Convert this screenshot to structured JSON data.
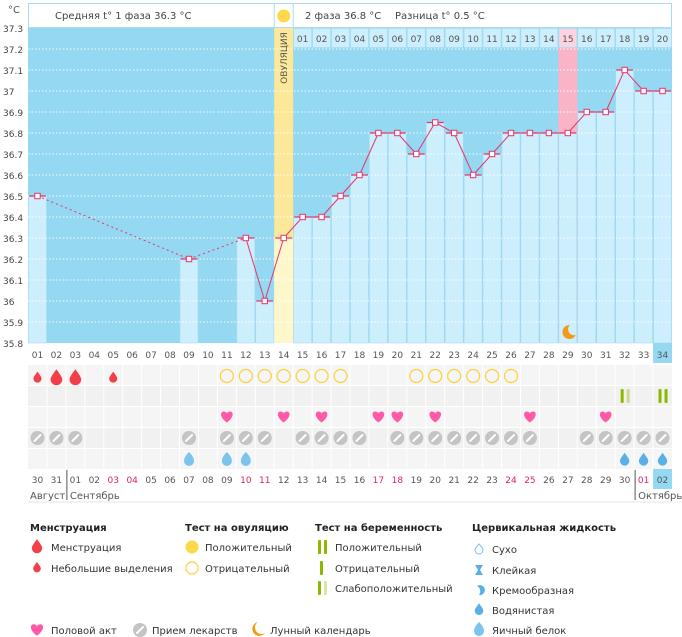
{
  "header": {
    "unit": "°C",
    "phase1": "Средняя t° 1 фаза 36.3 °C",
    "phase2": "2 фаза 36.8 °C",
    "difference": "Разница t° 0.5 °C",
    "ovulation_label": "ОВУЛЯЦИЯ"
  },
  "chart_data": {
    "type": "line",
    "y_unit": "°C",
    "ylim": [
      35.8,
      37.3
    ],
    "y_ticks": [
      "37.3",
      "37.2",
      "37.1",
      "37",
      "36.9",
      "36.8",
      "36.7",
      "36.6",
      "36.5",
      "36.4",
      "36.3",
      "36.2",
      "36.1",
      "36",
      "35.9",
      "35.8"
    ],
    "grid": true,
    "cycle_days": [
      "01",
      "02",
      "03",
      "04",
      "05",
      "06",
      "07",
      "08",
      "09",
      "10",
      "11",
      "12",
      "13",
      "14",
      "15",
      "16",
      "17",
      "18",
      "19",
      "20",
      "21",
      "22",
      "23",
      "24",
      "25",
      "26",
      "27",
      "28",
      "29",
      "30",
      "31",
      "32",
      "33",
      "34"
    ],
    "temperatures": [
      36.5,
      null,
      null,
      null,
      null,
      null,
      null,
      null,
      36.2,
      null,
      null,
      36.3,
      36.0,
      36.3,
      36.4,
      36.4,
      36.5,
      36.6,
      36.8,
      36.8,
      36.7,
      36.85,
      36.8,
      36.6,
      36.7,
      36.8,
      36.8,
      36.8,
      36.8,
      36.9,
      36.9,
      37.1,
      37.0,
      37.0
    ],
    "ovulation_day": 14,
    "highlight_day": 29,
    "current_day": 34,
    "second_phase_start_day": 15,
    "second_phase_days": [
      "01",
      "02",
      "03",
      "04",
      "05",
      "06",
      "07",
      "08",
      "09",
      "10",
      "11",
      "12",
      "13",
      "14",
      "15",
      "16",
      "17",
      "18",
      "19",
      "20"
    ],
    "dates": [
      "30",
      "31",
      "01",
      "02",
      "03",
      "04",
      "05",
      "06",
      "07",
      "08",
      "09",
      "10",
      "11",
      "12",
      "13",
      "14",
      "15",
      "16",
      "17",
      "18",
      "19",
      "20",
      "21",
      "22",
      "23",
      "24",
      "25",
      "26",
      "27",
      "28",
      "29",
      "30",
      "01",
      "02"
    ],
    "weekend_dates_cycle_days": [
      5,
      6,
      12,
      13,
      19,
      20,
      26,
      27,
      33
    ],
    "months": [
      {
        "label": "Август",
        "start_day": 1
      },
      {
        "label": "Сентябрь",
        "start_day": 3
      },
      {
        "label": "Октябрь",
        "start_day": 33
      }
    ],
    "menstruation": {
      "heavy": [
        2,
        3
      ],
      "light": [
        1,
        5
      ]
    },
    "ovulation_test": {
      "negative": [
        11,
        12,
        13,
        14,
        15,
        16,
        17,
        21,
        22,
        23,
        24,
        25,
        26
      ],
      "positive": []
    },
    "pregnancy_test": {
      "positive": [
        34
      ],
      "weak_positive": [
        32
      ]
    },
    "intercourse": [
      11,
      14,
      16,
      19,
      20,
      22,
      27,
      31
    ],
    "medication": [
      1,
      2,
      3,
      9,
      11,
      12,
      13,
      15,
      16,
      17,
      18,
      20,
      21,
      22,
      23,
      24,
      25,
      26,
      27,
      30,
      31,
      32,
      33,
      34
    ],
    "cervical_fluid": {
      "egg_white": [
        9,
        11,
        12
      ],
      "watery": [
        32,
        33,
        34
      ]
    },
    "lunar_calendar": [
      29
    ]
  },
  "colors": {
    "background_blue": "#94d8f2",
    "bar_blue": "#cdeefc",
    "ovulation_yellow": "#fde89a",
    "highlight_pink": "#f9b4c8",
    "line_red": "#e8356a",
    "weekend_red": "#e8205a",
    "test_green": "#8cb800"
  },
  "legend": {
    "menstruation": {
      "title": "Менструация",
      "items": [
        "Менструация",
        "Небольшие выделения"
      ]
    },
    "ovulation_test": {
      "title": "Тест на овуляцию",
      "items": [
        "Положительный",
        "Отрицательный"
      ]
    },
    "pregnancy_test": {
      "title": "Тест на беременность",
      "items": [
        "Положительный",
        "Отрицательный",
        "Слабоположительный"
      ]
    },
    "cervical_fluid": {
      "title": "Цервикальная жидкость",
      "items": [
        "Сухо",
        "Клейкая",
        "Кремообразная",
        "Водянистая",
        "Яичный белок"
      ]
    },
    "other": [
      "Половой акт",
      "Прием лекарств",
      "Лунный календарь"
    ]
  }
}
